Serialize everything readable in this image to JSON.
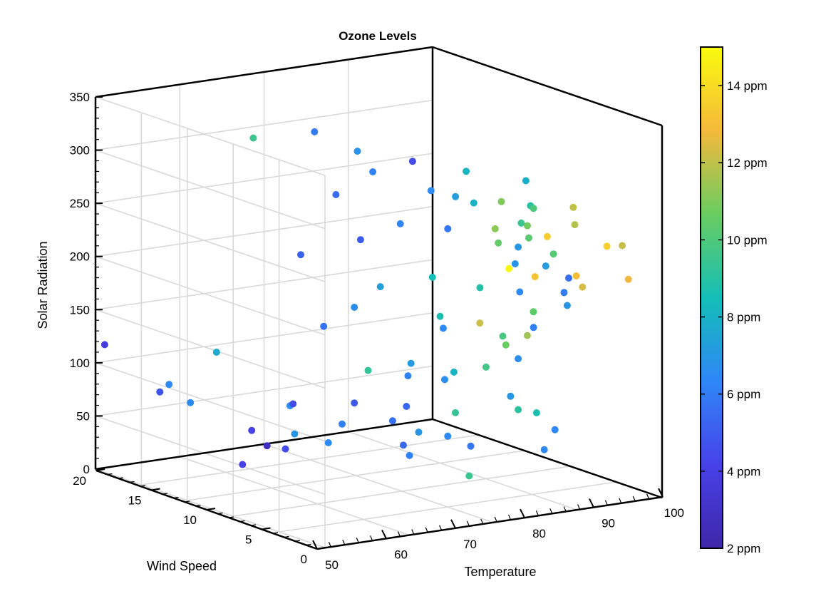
{
  "chart_data": {
    "type": "scatter",
    "title": "Ozone Levels",
    "axes": {
      "x": {
        "label": "Temperature",
        "range": [
          50,
          100
        ],
        "ticks": [
          "50",
          "60",
          "70",
          "80",
          "90",
          "100"
        ]
      },
      "y": {
        "label": "Wind Speed",
        "range": [
          0,
          20
        ],
        "ticks": [
          "0",
          "5",
          "10",
          "15",
          "20"
        ]
      },
      "z": {
        "label": "Solar Radiation",
        "range": [
          0,
          350
        ],
        "ticks": [
          "0",
          "50",
          "100",
          "150",
          "200",
          "250",
          "300",
          "350"
        ]
      }
    },
    "grid": true,
    "colorbar": {
      "placement": "right",
      "range": [
        2,
        15
      ],
      "ticks": [
        "2 ppm",
        "4 ppm",
        "6 ppm",
        "8 ppm",
        "10 ppm",
        "12 ppm",
        "14 ppm"
      ],
      "tick_values": [
        2,
        4,
        6,
        8,
        10,
        12,
        14
      ]
    },
    "colormap": [
      "#3e26a8",
      "#4741e8",
      "#2e87f7",
      "#13beb7",
      "#69cd60",
      "#f5b93b",
      "#f9fb0e"
    ],
    "points": [
      [
        57,
        2,
        230,
        6.5
      ],
      [
        59,
        6,
        260,
        6.2
      ],
      [
        61,
        10,
        310,
        6.0
      ],
      [
        63,
        8,
        290,
        6.8
      ],
      [
        55,
        12,
        300,
        9.5
      ],
      [
        64,
        5,
        275,
        4.5
      ],
      [
        62,
        9,
        250,
        5.5
      ],
      [
        60,
        7,
        200,
        5.0
      ],
      [
        58,
        10,
        190,
        5.2
      ],
      [
        66,
        3,
        240,
        7.2
      ],
      [
        65,
        6,
        220,
        6.3
      ],
      [
        68,
        4,
        215,
        5.8
      ],
      [
        72,
        4,
        275,
        8.2
      ],
      [
        70,
        3,
        240,
        8.0
      ],
      [
        74,
        1,
        262,
        7.9
      ],
      [
        75,
        1,
        240,
        9.0
      ],
      [
        76,
        3,
        250,
        11.0
      ],
      [
        78,
        2,
        228,
        10.8
      ],
      [
        79,
        4,
        218,
        10.5
      ],
      [
        80,
        1,
        202,
        10.2
      ],
      [
        83,
        3,
        254,
        10.0
      ],
      [
        84,
        4,
        244,
        9.5
      ],
      [
        86,
        3,
        232,
        13.5
      ],
      [
        88,
        2,
        260,
        12.0
      ],
      [
        82,
        5,
        238,
        11.2
      ],
      [
        85,
        5,
        205,
        14.8
      ],
      [
        87,
        4,
        198,
        13.2
      ],
      [
        90,
        2,
        188,
        12.4
      ],
      [
        92,
        3,
        252,
        11.8
      ],
      [
        95,
        1,
        232,
        12.1
      ],
      [
        93,
        6,
        248,
        10.3
      ],
      [
        96,
        4,
        212,
        13.0
      ],
      [
        99,
        3,
        242,
        13.6
      ],
      [
        100,
        2,
        210,
        12.8
      ],
      [
        97,
        5,
        200,
        11.0
      ],
      [
        94,
        6,
        180,
        10.4
      ],
      [
        89,
        5,
        148,
        11.5
      ],
      [
        88,
        6,
        140,
        10.6
      ],
      [
        91,
        7,
        155,
        9.9
      ],
      [
        86,
        7,
        160,
        12.2
      ],
      [
        75,
        4,
        170,
        8.9
      ],
      [
        72,
        6,
        180,
        8.5
      ],
      [
        70,
        5,
        138,
        8.7
      ],
      [
        68,
        8,
        170,
        7.3
      ],
      [
        66,
        9,
        150,
        6.6
      ],
      [
        63,
        10,
        130,
        5.7
      ],
      [
        67,
        4,
        120,
        6.4
      ],
      [
        71,
        7,
        100,
        7.1
      ],
      [
        74,
        8,
        95,
        6.2
      ],
      [
        69,
        9,
        95,
        9.3
      ],
      [
        73,
        5,
        90,
        8.1
      ],
      [
        76,
        2,
        100,
        6.6
      ],
      [
        78,
        3,
        70,
        6.9
      ],
      [
        80,
        5,
        105,
        9.7
      ],
      [
        77,
        6,
        60,
        9.4
      ],
      [
        58,
        15,
        110,
        7.7
      ],
      [
        55,
        17,
        80,
        6.4
      ],
      [
        52,
        20,
        120,
        3.8
      ],
      [
        53,
        17,
        70,
        4.8
      ],
      [
        56,
        16,
        62,
        6.5
      ],
      [
        63,
        12,
        60,
        6.6
      ],
      [
        60,
        11,
        55,
        4.4
      ],
      [
        66,
        9,
        60,
        4.9
      ],
      [
        67,
        10,
        44,
        6.1
      ],
      [
        71,
        5,
        80,
        6.6
      ],
      [
        70,
        7,
        58,
        5.3
      ],
      [
        62,
        14,
        40,
        4.2
      ],
      [
        64,
        12,
        35,
        6.9
      ],
      [
        67,
        7,
        40,
        5.6
      ],
      [
        62,
        12,
        18,
        4.5
      ],
      [
        64,
        10,
        22,
        6.4
      ],
      [
        62,
        5,
        5,
        5.4
      ],
      [
        68,
        4,
        20,
        6.5
      ],
      [
        73,
        4,
        18,
        5.8
      ],
      [
        67,
        6,
        5,
        6.2
      ],
      [
        80,
        2,
        55,
        8.7
      ],
      [
        69,
        6,
        30,
        6.9
      ],
      [
        60,
        14,
        5,
        4.1
      ],
      [
        58,
        12,
        15,
        2.8
      ],
      [
        78,
        1,
        15,
        6.4
      ],
      [
        83,
        3,
        142,
        6.2
      ],
      [
        83,
        1,
        158,
        6.9
      ],
      [
        80,
        3,
        171,
        6.4
      ],
      [
        86,
        2,
        177,
        6.0
      ],
      [
        87,
        2,
        192,
        5.6
      ],
      [
        79,
        3,
        196,
        6.8
      ],
      [
        82,
        2,
        196,
        7.2
      ],
      [
        76,
        2,
        205,
        7.0
      ],
      [
        84,
        2,
        45,
        6.3
      ],
      [
        80,
        6,
        5,
        9.5
      ],
      [
        76,
        2,
        52,
        9.1
      ]
    ]
  }
}
